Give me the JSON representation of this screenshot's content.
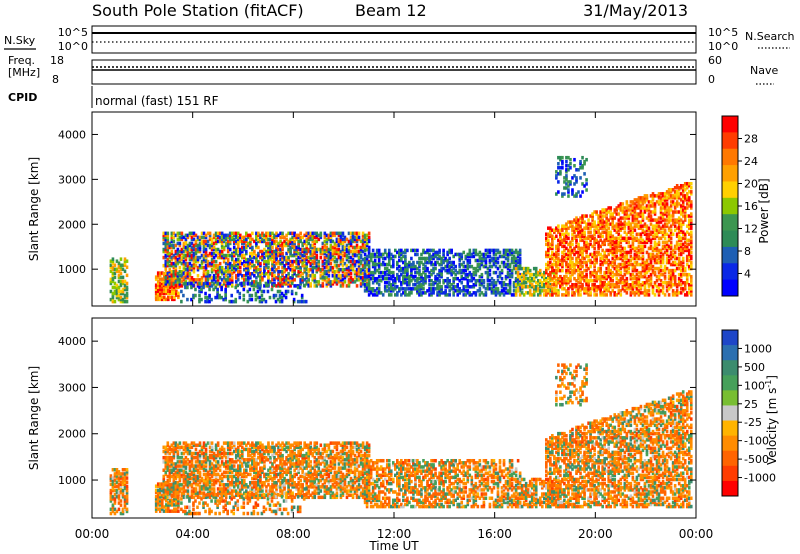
{
  "header": {
    "station": "South Pole Station (fitACF)",
    "beam": "Beam 12",
    "date": "31/May/2013"
  },
  "status_panel": {
    "nsky_label": "N.Sky",
    "nsky_ticks": [
      "10^5",
      "10^0"
    ],
    "nsearch_label": "N.Search",
    "nsearch_ticks": [
      "10^5",
      "10^0"
    ],
    "freq_label_line1": "Freq.",
    "freq_label_line2": "[MHz]",
    "freq_ticks": [
      "18",
      "8"
    ],
    "nave_label": "Nave",
    "nave_ticks": [
      "60",
      "0"
    ],
    "cpid_label": "CPID",
    "cpid_value": "normal (fast) 151 RF"
  },
  "chart_data": [
    {
      "type": "heatmap",
      "name": "power",
      "ylabel": "Slant Range [km]",
      "yticks": [
        "4000",
        "3000",
        "2000",
        "1000"
      ],
      "ylim": [
        180,
        4500
      ],
      "xlim_hours": [
        0,
        24
      ],
      "colorbar": {
        "label": "Power [dB]",
        "ticks": [
          "28",
          "24",
          "20",
          "16",
          "12",
          "8",
          "4"
        ],
        "colors": [
          "#ff0000",
          "#ff3c00",
          "#ff7800",
          "#ffa000",
          "#ffd000",
          "#8cc800",
          "#3c9650",
          "#2e8b57",
          "#1e5fb4",
          "#0a28e6",
          "#0000ff"
        ]
      }
    },
    {
      "type": "heatmap",
      "name": "velocity",
      "ylabel": "Slant Range [km]",
      "yticks": [
        "4000",
        "3000",
        "2000",
        "1000"
      ],
      "ylim": [
        180,
        4500
      ],
      "xlim_hours": [
        0,
        24
      ],
      "colorbar": {
        "label": "Velocity [m s",
        "label_sup": "-1",
        "label_end": "]",
        "ticks": [
          "1000",
          "500",
          "100",
          "25",
          "-25",
          "-100",
          "-500",
          "-1000"
        ],
        "colors": [
          "#1e46c8",
          "#2b6fb0",
          "#3c8c6e",
          "#46a05a",
          "#78be32",
          "#c8c8c8",
          "#ffb400",
          "#ff8c00",
          "#ff6400",
          "#ff3c00",
          "#ff0000"
        ]
      }
    }
  ],
  "xaxis": {
    "label": "Time UT",
    "ticks": [
      "00:00",
      "04:00",
      "08:00",
      "12:00",
      "16:00",
      "20:00",
      "00:00"
    ]
  }
}
